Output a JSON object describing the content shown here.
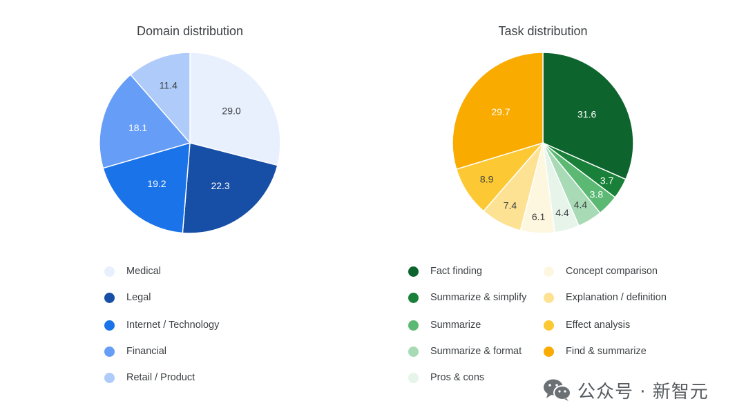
{
  "chart_data": [
    {
      "type": "pie",
      "title": "Domain distribution",
      "slices": [
        {
          "label": "Medical",
          "value": 29.0,
          "value_label": "29.0",
          "color": "#e8f0fe",
          "text_color": "#3c4043"
        },
        {
          "label": "Legal",
          "value": 22.3,
          "value_label": "22.3",
          "color": "#174ea6",
          "text_color": "#ffffff"
        },
        {
          "label": "Internet / Technology",
          "value": 19.2,
          "value_label": "19.2",
          "color": "#1a73e8",
          "text_color": "#ffffff"
        },
        {
          "label": "Financial",
          "value": 18.1,
          "value_label": "18.1",
          "color": "#669df6",
          "text_color": "#ffffff"
        },
        {
          "label": "Retail / Product",
          "value": 11.4,
          "value_label": "11.4",
          "color": "#aecbfa",
          "text_color": "#3c4043"
        }
      ],
      "legend_position": "bottom"
    },
    {
      "type": "pie",
      "title": "Task distribution",
      "slices": [
        {
          "label": "Fact finding",
          "value": 31.6,
          "value_label": "31.6",
          "color": "#0d652d",
          "text_color": "#ffffff"
        },
        {
          "label": "Summarize & simplify",
          "value": 3.7,
          "value_label": "3.7",
          "color": "#188038",
          "text_color": "#ffffff"
        },
        {
          "label": "Summarize",
          "value": 3.8,
          "value_label": "3.8",
          "color": "#5bb974",
          "text_color": "#ffffff"
        },
        {
          "label": "Summarize & format",
          "value": 4.4,
          "value_label": "4.4",
          "color": "#a8dab5",
          "text_color": "#3c4043"
        },
        {
          "label": "Pros & cons",
          "value": 4.4,
          "value_label": "4.4",
          "color": "#e6f4ea",
          "text_color": "#3c4043"
        },
        {
          "label": "Concept comparison",
          "value": 6.1,
          "value_label": "6.1",
          "color": "#fef7e0",
          "text_color": "#3c4043"
        },
        {
          "label": "Explanation / definition",
          "value": 7.4,
          "value_label": "7.4",
          "color": "#fde293",
          "text_color": "#3c4043"
        },
        {
          "label": "Effect analysis",
          "value": 8.9,
          "value_label": "8.9",
          "color": "#fcc934",
          "text_color": "#3c4043"
        },
        {
          "label": "Find & summarize",
          "value": 29.7,
          "value_label": "29.7",
          "color": "#f9ab00",
          "text_color": "#ffffff"
        }
      ],
      "legend_position": "bottom"
    }
  ],
  "watermark": {
    "text": "公众号 · 新智元",
    "icon": "wechat-icon"
  }
}
